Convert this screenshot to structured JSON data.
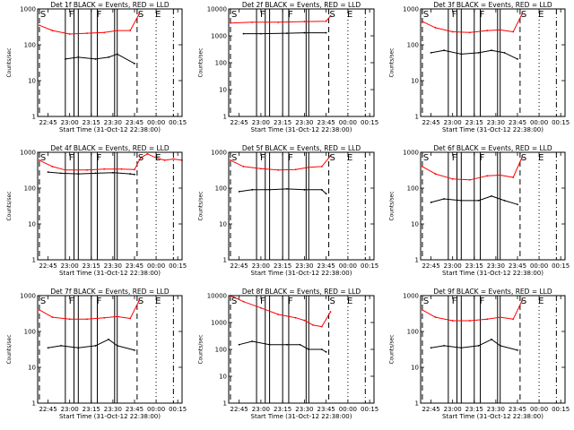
{
  "chart_data": [
    {
      "type": "line",
      "title": "Det 1f BLACK = Events, RED = LLD",
      "xlabel": "Start Time (31-Oct-12 22:38:00)",
      "ylabel": "Counts/sec",
      "yscale": "log",
      "ylim": [
        1,
        1000
      ],
      "yticks": [
        "1",
        "10",
        "100",
        "1000"
      ],
      "xlim": [
        22.63,
        24.3
      ],
      "xticks": [
        "22:45",
        "23:00",
        "23:15",
        "23:30",
        "23:45",
        "00:00",
        "00:15"
      ],
      "markers": [
        {
          "label": "S",
          "x": 22.65
        },
        {
          "label": "F",
          "x": 22.98
        },
        {
          "label": "F",
          "x": 23.3
        },
        {
          "label": "S",
          "x": 23.78
        },
        {
          "label": "E",
          "x": 23.98
        }
      ],
      "bars": [
        22.95,
        23.05,
        23.1,
        23.25,
        23.32,
        23.52,
        23.55
      ],
      "dashed": [
        22.65,
        23.78
      ],
      "dotted": [
        24.0
      ],
      "dashdot": [
        24.2
      ],
      "series": [
        {
          "name": "BLACK = Events",
          "color": "#000000",
          "x": [
            22.95,
            23.1,
            23.3,
            23.45,
            23.55,
            23.75
          ],
          "y": [
            40,
            45,
            40,
            45,
            55,
            30
          ]
        },
        {
          "name": "RED = LLD",
          "color": "#ff0000",
          "x": [
            22.65,
            22.8,
            23.0,
            23.2,
            23.4,
            23.55,
            23.7,
            23.8
          ],
          "y": [
            350,
            250,
            200,
            210,
            220,
            250,
            250,
            700
          ]
        }
      ]
    },
    {
      "type": "line",
      "title": "Det 2f BLACK = Events, RED = LLD",
      "xlabel": "Start Time (31-Oct-12 22:38:00)",
      "ylabel": "Counts/sec",
      "yscale": "log",
      "ylim": [
        1,
        10000
      ],
      "yticks": [
        "1",
        "10",
        "100",
        "1000",
        "10000"
      ],
      "xlim": [
        22.63,
        24.3
      ],
      "xticks": [
        "22:45",
        "23:00",
        "23:15",
        "23:30",
        "23:45",
        "00:00",
        "00:15"
      ],
      "markers": [
        {
          "label": "S",
          "x": 22.65
        },
        {
          "label": "F",
          "x": 22.98
        },
        {
          "label": "F",
          "x": 23.3
        },
        {
          "label": "S",
          "x": 23.78
        },
        {
          "label": "E",
          "x": 23.98
        }
      ],
      "bars": [
        22.95,
        23.05,
        23.1,
        23.25,
        23.32,
        23.52,
        23.55
      ],
      "dashed": [
        22.65,
        23.78
      ],
      "dotted": [
        24.0
      ],
      "dashdot": [
        24.2
      ],
      "series": [
        {
          "name": "BLACK = Events",
          "color": "#000000",
          "x": [
            22.8,
            23.0,
            23.3,
            23.5,
            23.75
          ],
          "y": [
            1200,
            1200,
            1250,
            1300,
            1300
          ]
        },
        {
          "name": "RED = LLD",
          "color": "#ff0000",
          "x": [
            22.65,
            22.9,
            23.2,
            23.5,
            23.75,
            23.8
          ],
          "y": [
            3000,
            3200,
            3200,
            3400,
            3500,
            5500
          ]
        }
      ]
    },
    {
      "type": "line",
      "title": "Det 3f BLACK = Events, RED = LLD",
      "xlabel": "Start Time (31-Oct-12 22:38:00)",
      "ylabel": "Counts/sec",
      "yscale": "log",
      "ylim": [
        1,
        1000
      ],
      "yticks": [
        "1",
        "10",
        "100",
        "1000"
      ],
      "xlim": [
        22.63,
        24.3
      ],
      "xticks": [
        "22:45",
        "23:00",
        "23:15",
        "23:30",
        "23:45",
        "00:00",
        "00:15"
      ],
      "markers": [
        {
          "label": "S",
          "x": 22.65
        },
        {
          "label": "F",
          "x": 22.98
        },
        {
          "label": "F",
          "x": 23.3
        },
        {
          "label": "S",
          "x": 23.78
        },
        {
          "label": "E",
          "x": 23.98
        }
      ],
      "bars": [
        22.95,
        23.05,
        23.1,
        23.25,
        23.32,
        23.52,
        23.55
      ],
      "dashed": [
        22.65,
        23.78
      ],
      "dotted": [
        24.0
      ],
      "dashdot": [
        24.2
      ],
      "series": [
        {
          "name": "BLACK = Events",
          "color": "#000000",
          "x": [
            22.75,
            22.9,
            23.1,
            23.3,
            23.45,
            23.6,
            23.75
          ],
          "y": [
            60,
            70,
            55,
            60,
            70,
            60,
            40
          ]
        },
        {
          "name": "RED = LLD",
          "color": "#ff0000",
          "x": [
            22.65,
            22.8,
            23.0,
            23.2,
            23.4,
            23.55,
            23.7,
            23.8
          ],
          "y": [
            450,
            300,
            230,
            220,
            250,
            260,
            230,
            700
          ]
        }
      ]
    },
    {
      "type": "line",
      "title": "Det 4f BLACK = Events, RED = LLD",
      "xlabel": "Start Time (31-Oct-12 22:38:00)",
      "ylabel": "Counts/sec",
      "yscale": "log",
      "ylim": [
        1,
        1000
      ],
      "yticks": [
        "1",
        "10",
        "100",
        "1000"
      ],
      "xlim": [
        22.63,
        24.3
      ],
      "xticks": [
        "22:45",
        "23:00",
        "23:15",
        "23:30",
        "23:45",
        "00:00",
        "00:15"
      ],
      "markers": [
        {
          "label": "S",
          "x": 22.65
        },
        {
          "label": "F",
          "x": 22.98
        },
        {
          "label": "F",
          "x": 23.3
        },
        {
          "label": "S",
          "x": 23.78
        },
        {
          "label": "E",
          "x": 23.98
        }
      ],
      "bars": [
        22.95,
        23.05,
        23.1,
        23.25,
        23.32,
        23.52,
        23.55
      ],
      "dashed": [
        22.65,
        23.78
      ],
      "dotted": [
        24.0
      ],
      "dashdot": [
        24.2
      ],
      "series": [
        {
          "name": "BLACK = Events",
          "color": "#000000",
          "x": [
            22.75,
            22.9,
            23.1,
            23.3,
            23.5,
            23.7,
            23.75
          ],
          "y": [
            280,
            260,
            250,
            260,
            270,
            250,
            240
          ]
        },
        {
          "name": "RED = LLD",
          "color": "#ff0000",
          "x": [
            22.65,
            22.8,
            22.95,
            23.2,
            23.4,
            23.6,
            23.75,
            23.82,
            23.9,
            24.0,
            24.1,
            24.2,
            24.3
          ],
          "y": [
            600,
            400,
            320,
            320,
            340,
            340,
            330,
            700,
            900,
            700,
            600,
            650,
            600
          ]
        }
      ]
    },
    {
      "type": "line",
      "title": "Det 5f BLACK = Events, RED = LLD",
      "xlabel": "Start Time (31-Oct-12 22:38:00)",
      "ylabel": "Counts/sec",
      "yscale": "log",
      "ylim": [
        1,
        1000
      ],
      "yticks": [
        "1",
        "10",
        "100",
        "1000"
      ],
      "xlim": [
        22.63,
        24.3
      ],
      "xticks": [
        "22:45",
        "23:00",
        "23:15",
        "23:30",
        "23:45",
        "00:00",
        "00:15"
      ],
      "markers": [
        {
          "label": "S",
          "x": 22.65
        },
        {
          "label": "F",
          "x": 22.98
        },
        {
          "label": "F",
          "x": 23.3
        },
        {
          "label": "S",
          "x": 23.78
        },
        {
          "label": "E",
          "x": 23.98
        }
      ],
      "bars": [
        22.95,
        23.05,
        23.1,
        23.25,
        23.32,
        23.52,
        23.55
      ],
      "dashed": [
        22.65,
        23.78
      ],
      "dotted": [
        24.0
      ],
      "dashdot": [
        24.2
      ],
      "series": [
        {
          "name": "BLACK = Events",
          "color": "#000000",
          "x": [
            22.75,
            22.9,
            23.1,
            23.3,
            23.5,
            23.7,
            23.75
          ],
          "y": [
            80,
            90,
            90,
            95,
            90,
            90,
            70
          ]
        },
        {
          "name": "RED = LLD",
          "color": "#ff0000",
          "x": [
            22.65,
            22.8,
            23.0,
            23.2,
            23.4,
            23.55,
            23.7,
            23.8
          ],
          "y": [
            600,
            400,
            350,
            320,
            330,
            380,
            400,
            800
          ]
        }
      ]
    },
    {
      "type": "line",
      "title": "Det 6f BLACK = Events, RED = LLD",
      "xlabel": "Start Time (31-Oct-12 22:38:00)",
      "ylabel": "Counts/sec",
      "yscale": "log",
      "ylim": [
        1,
        1000
      ],
      "yticks": [
        "1",
        "10",
        "100",
        "1000"
      ],
      "xlim": [
        22.63,
        24.3
      ],
      "xticks": [
        "22:45",
        "23:00",
        "23:15",
        "23:30",
        "23:45",
        "00:00",
        "00:15"
      ],
      "markers": [
        {
          "label": "S",
          "x": 22.65
        },
        {
          "label": "F",
          "x": 22.98
        },
        {
          "label": "F",
          "x": 23.3
        },
        {
          "label": "S",
          "x": 23.78
        },
        {
          "label": "E",
          "x": 23.98
        }
      ],
      "bars": [
        22.95,
        23.05,
        23.1,
        23.25,
        23.32,
        23.52,
        23.55
      ],
      "dashed": [
        22.65,
        23.78
      ],
      "dotted": [
        24.0
      ],
      "dashdot": [
        24.2
      ],
      "series": [
        {
          "name": "BLACK = Events",
          "color": "#000000",
          "x": [
            22.75,
            22.9,
            23.1,
            23.3,
            23.45,
            23.6,
            23.75
          ],
          "y": [
            40,
            50,
            45,
            45,
            60,
            45,
            35
          ]
        },
        {
          "name": "RED = LLD",
          "color": "#ff0000",
          "x": [
            22.65,
            22.8,
            23.0,
            23.2,
            23.4,
            23.55,
            23.7,
            23.8
          ],
          "y": [
            400,
            250,
            180,
            170,
            220,
            230,
            200,
            700
          ]
        }
      ]
    },
    {
      "type": "line",
      "title": "Det 7f BLACK = Events, RED = LLD",
      "xlabel": "Start Time (31-Oct-12 22:38:00)",
      "ylabel": "Counts/sec",
      "yscale": "log",
      "ylim": [
        1,
        1000
      ],
      "yticks": [
        "1",
        "10",
        "100",
        "1000"
      ],
      "xlim": [
        22.63,
        24.3
      ],
      "xticks": [
        "22:45",
        "23:00",
        "23:15",
        "23:30",
        "23:45",
        "00:00",
        "00:15"
      ],
      "markers": [
        {
          "label": "S",
          "x": 22.65
        },
        {
          "label": "F",
          "x": 22.98
        },
        {
          "label": "F",
          "x": 23.3
        },
        {
          "label": "S",
          "x": 23.78
        },
        {
          "label": "E",
          "x": 23.98
        }
      ],
      "bars": [
        22.95,
        23.05,
        23.1,
        23.25,
        23.32,
        23.52,
        23.55
      ],
      "dashed": [
        22.65,
        23.78
      ],
      "dotted": [
        24.0
      ],
      "dashdot": [
        24.2
      ],
      "series": [
        {
          "name": "BLACK = Events",
          "color": "#000000",
          "x": [
            22.75,
            22.9,
            23.1,
            23.3,
            23.45,
            23.55,
            23.75
          ],
          "y": [
            35,
            40,
            35,
            40,
            60,
            40,
            30
          ]
        },
        {
          "name": "RED = LLD",
          "color": "#ff0000",
          "x": [
            22.65,
            22.8,
            23.0,
            23.2,
            23.4,
            23.55,
            23.7,
            23.8
          ],
          "y": [
            400,
            250,
            220,
            220,
            240,
            260,
            230,
            700
          ]
        }
      ]
    },
    {
      "type": "line",
      "title": "Det 8f BLACK = Events, RED = LLD",
      "xlabel": "Start Time (31-Oct-12 22:38:00)",
      "ylabel": "Counts/sec",
      "yscale": "log",
      "ylim": [
        1,
        10000
      ],
      "yticks": [
        "1",
        "10",
        "100",
        "1000",
        "10000"
      ],
      "xlim": [
        22.63,
        24.3
      ],
      "xticks": [
        "22:45",
        "23:00",
        "23:15",
        "23:30",
        "23:45",
        "00:00",
        "00:15"
      ],
      "markers": [
        {
          "label": "S",
          "x": 22.65
        },
        {
          "label": "F",
          "x": 22.98
        },
        {
          "label": "F",
          "x": 23.3
        },
        {
          "label": "S",
          "x": 23.78
        },
        {
          "label": "E",
          "x": 23.98
        }
      ],
      "bars": [
        22.95,
        23.05,
        23.1,
        23.25,
        23.32,
        23.52,
        23.55
      ],
      "dashed": [
        22.65,
        23.78
      ],
      "dotted": [
        24.0
      ],
      "dashdot": [
        24.2
      ],
      "series": [
        {
          "name": "BLACK = Events",
          "color": "#000000",
          "x": [
            22.75,
            22.9,
            23.1,
            23.3,
            23.45,
            23.55,
            23.7,
            23.75
          ],
          "y": [
            150,
            200,
            150,
            150,
            150,
            100,
            100,
            80
          ]
        },
        {
          "name": "RED = LLD",
          "color": "#ff0000",
          "x": [
            22.65,
            22.8,
            23.0,
            23.2,
            23.4,
            23.5,
            23.6,
            23.7,
            23.8
          ],
          "y": [
            10000,
            6000,
            3500,
            2000,
            1500,
            1200,
            800,
            700,
            2500
          ]
        }
      ]
    },
    {
      "type": "line",
      "title": "Det 9f BLACK = Events, RED = LLD",
      "xlabel": "Start Time (31-Oct-12 22:38:00)",
      "ylabel": "Counts/sec",
      "yscale": "log",
      "ylim": [
        1,
        1000
      ],
      "yticks": [
        "1",
        "10",
        "100",
        "1000"
      ],
      "xlim": [
        22.63,
        24.3
      ],
      "xticks": [
        "22:45",
        "23:00",
        "23:15",
        "23:30",
        "23:45",
        "00:00",
        "00:15"
      ],
      "markers": [
        {
          "label": "S",
          "x": 22.65
        },
        {
          "label": "F",
          "x": 22.98
        },
        {
          "label": "F",
          "x": 23.3
        },
        {
          "label": "S",
          "x": 23.78
        },
        {
          "label": "E",
          "x": 23.98
        }
      ],
      "bars": [
        22.95,
        23.05,
        23.1,
        23.25,
        23.32,
        23.52,
        23.55
      ],
      "dashed": [
        22.65,
        23.78
      ],
      "dotted": [
        24.0
      ],
      "dashdot": [
        24.2
      ],
      "series": [
        {
          "name": "BLACK = Events",
          "color": "#000000",
          "x": [
            22.75,
            22.9,
            23.1,
            23.3,
            23.45,
            23.55,
            23.75
          ],
          "y": [
            35,
            40,
            35,
            40,
            60,
            40,
            30
          ]
        },
        {
          "name": "RED = LLD",
          "color": "#ff0000",
          "x": [
            22.65,
            22.8,
            23.0,
            23.2,
            23.4,
            23.55,
            23.7,
            23.8
          ],
          "y": [
            400,
            250,
            200,
            200,
            220,
            250,
            220,
            700
          ]
        }
      ]
    }
  ]
}
